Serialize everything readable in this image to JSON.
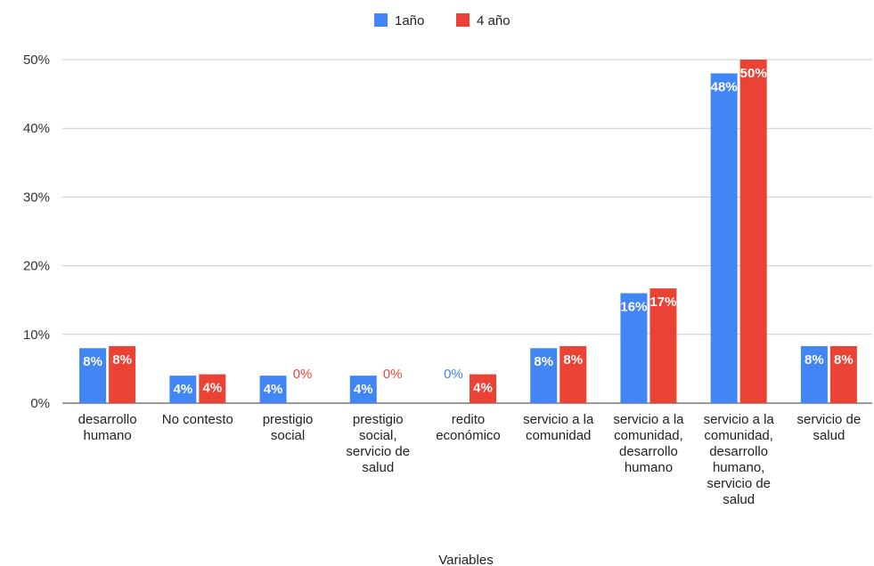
{
  "chart_data": {
    "type": "bar",
    "categories": [
      [
        "desarrollo",
        "humano"
      ],
      [
        "No contesto"
      ],
      [
        "prestigio",
        "social"
      ],
      [
        "prestigio",
        "social,",
        "servicio de",
        "salud"
      ],
      [
        "redito",
        "económico"
      ],
      [
        "servicio a la",
        "comunidad"
      ],
      [
        "servicio a la",
        "comunidad,",
        "desarrollo",
        "humano"
      ],
      [
        "servicio a la",
        "comunidad,",
        "desarrollo",
        "humano,",
        "servicio de",
        "salud"
      ],
      [
        "servicio de",
        "salud"
      ]
    ],
    "series": [
      {
        "name": "1año",
        "color": "#4285f4",
        "values": [
          8,
          4,
          4,
          4,
          0,
          8,
          16,
          48,
          8.3
        ],
        "labels": [
          "8%",
          "4%",
          "4%",
          "4%",
          "0%",
          "8%",
          "16%",
          "48%",
          "8%"
        ]
      },
      {
        "name": "4 año",
        "color": "#ea4335",
        "values": [
          8.3,
          4.2,
          0,
          0,
          4.2,
          8.3,
          16.7,
          50,
          8.3
        ],
        "labels": [
          "8%",
          "4%",
          "0%",
          "0%",
          "4%",
          "8%",
          "17%",
          "50%",
          "8%"
        ]
      }
    ],
    "xlabel": "Variables",
    "ylabel": "",
    "ylim": [
      0,
      50
    ],
    "yticks": [
      {
        "value": 0,
        "label": "0%"
      },
      {
        "value": 10,
        "label": "10%"
      },
      {
        "value": 20,
        "label": "20%"
      },
      {
        "value": 30,
        "label": "30%"
      },
      {
        "value": 40,
        "label": "40%"
      },
      {
        "value": 50,
        "label": "50%"
      }
    ],
    "grid": true,
    "legend_position": "top"
  }
}
